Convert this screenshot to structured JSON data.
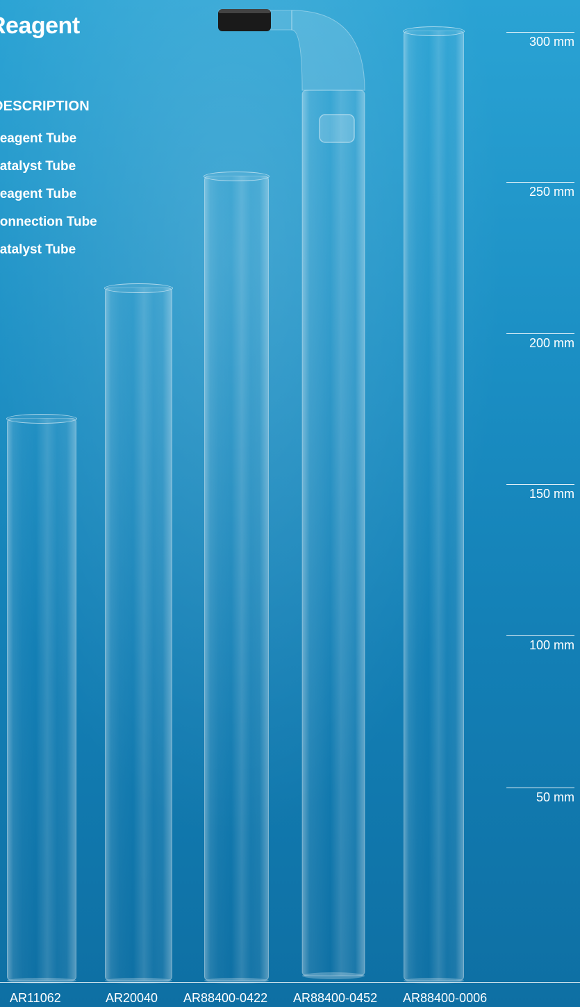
{
  "title": "Reagent",
  "description_header": "DESCRIPTION",
  "descriptions": [
    "Reagent Tube",
    "Catalyst Tube",
    "Reagent Tube",
    "Connection Tube",
    "Catalyst Tube"
  ],
  "scale_marks": [
    "300 mm",
    "250 mm",
    "200 mm",
    "150 mm",
    "100 mm",
    "50 mm"
  ],
  "tubes": [
    {
      "part": "AR11062",
      "height_mm": 187
    },
    {
      "part": "AR20040",
      "height_mm": 230
    },
    {
      "part": "AR88400-0422",
      "height_mm": 267
    },
    {
      "part": "AR88400-0452",
      "height_mm": 318
    },
    {
      "part": "AR88400-0006",
      "height_mm": 315
    }
  ],
  "colors": {
    "background_top": "#2aa3d4",
    "background_bottom": "#0e6fa3",
    "text": "#ffffff",
    "stopper": "#1a1a1a"
  },
  "icons": {
    "bent_tube_stopper": "rubber-stopper-icon"
  }
}
